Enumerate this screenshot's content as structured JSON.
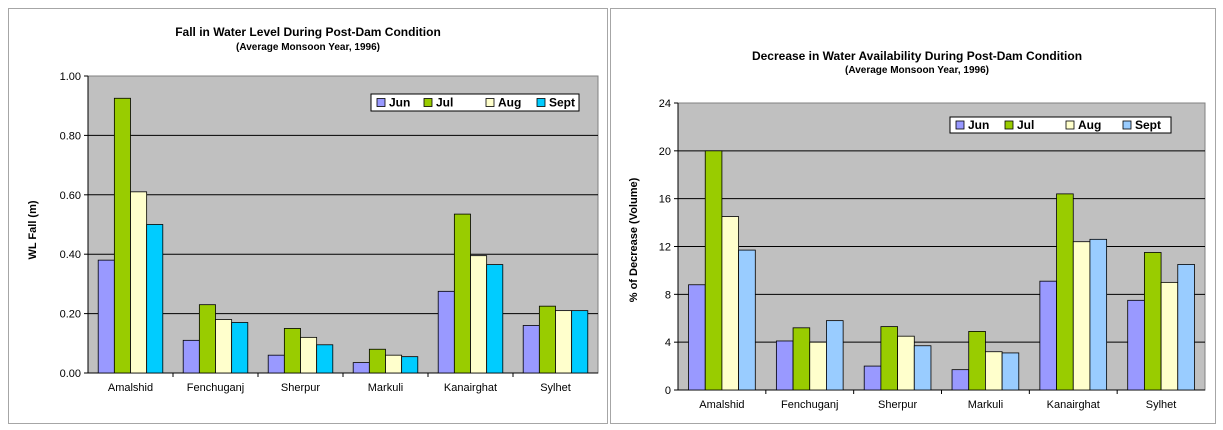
{
  "chart_data": [
    {
      "type": "bar",
      "title": "Fall in Water Level During Post-Dam Condition",
      "subtitle": "(Average Monsoon Year, 1996)",
      "xlabel": "",
      "ylabel": "WL Fall (m)",
      "ylim": [
        0,
        1.0
      ],
      "yticks": [
        "0.00",
        "0.20",
        "0.40",
        "0.60",
        "0.80",
        "1.00"
      ],
      "grid": true,
      "legend_position": "top-right",
      "categories": [
        "Amalshid",
        "Fenchuganj",
        "Sherpur",
        "Markuli",
        "Kanairghat",
        "Sylhet"
      ],
      "series": [
        {
          "name": "Jun",
          "color": "#9999ff",
          "values": [
            0.38,
            0.11,
            0.06,
            0.035,
            0.275,
            0.16
          ]
        },
        {
          "name": "Jul",
          "color": "#99cc00",
          "values": [
            0.925,
            0.23,
            0.15,
            0.08,
            0.535,
            0.225
          ]
        },
        {
          "name": "Aug",
          "color": "#ffffcc",
          "values": [
            0.61,
            0.18,
            0.12,
            0.06,
            0.395,
            0.21
          ]
        },
        {
          "name": "Sept",
          "color": "#00ccff",
          "values": [
            0.5,
            0.17,
            0.095,
            0.055,
            0.365,
            0.21
          ]
        }
      ]
    },
    {
      "type": "bar",
      "title": "Decrease in Water Availability During Post-Dam Condition",
      "subtitle": "(Average Monsoon Year, 1996)",
      "xlabel": "",
      "ylabel": "% of Decrease (Volume)",
      "ylim": [
        0,
        24
      ],
      "yticks": [
        "0",
        "4",
        "8",
        "12",
        "16",
        "20",
        "24"
      ],
      "grid": true,
      "legend_position": "top-right",
      "categories": [
        "Amalshid",
        "Fenchuganj",
        "Sherpur",
        "Markuli",
        "Kanairghat",
        "Sylhet"
      ],
      "series": [
        {
          "name": "Jun",
          "color": "#9999ff",
          "values": [
            8.8,
            4.1,
            2.0,
            1.7,
            9.1,
            7.5
          ]
        },
        {
          "name": "Jul",
          "color": "#99cc00",
          "values": [
            20.0,
            5.2,
            5.3,
            4.9,
            16.4,
            11.5
          ]
        },
        {
          "name": "Aug",
          "color": "#ffffcc",
          "values": [
            14.5,
            4.0,
            4.5,
            3.2,
            12.4,
            9.0
          ]
        },
        {
          "name": "Sept",
          "color": "#99ccff",
          "values": [
            11.7,
            5.8,
            3.7,
            3.1,
            12.6,
            10.5
          ]
        }
      ]
    }
  ]
}
